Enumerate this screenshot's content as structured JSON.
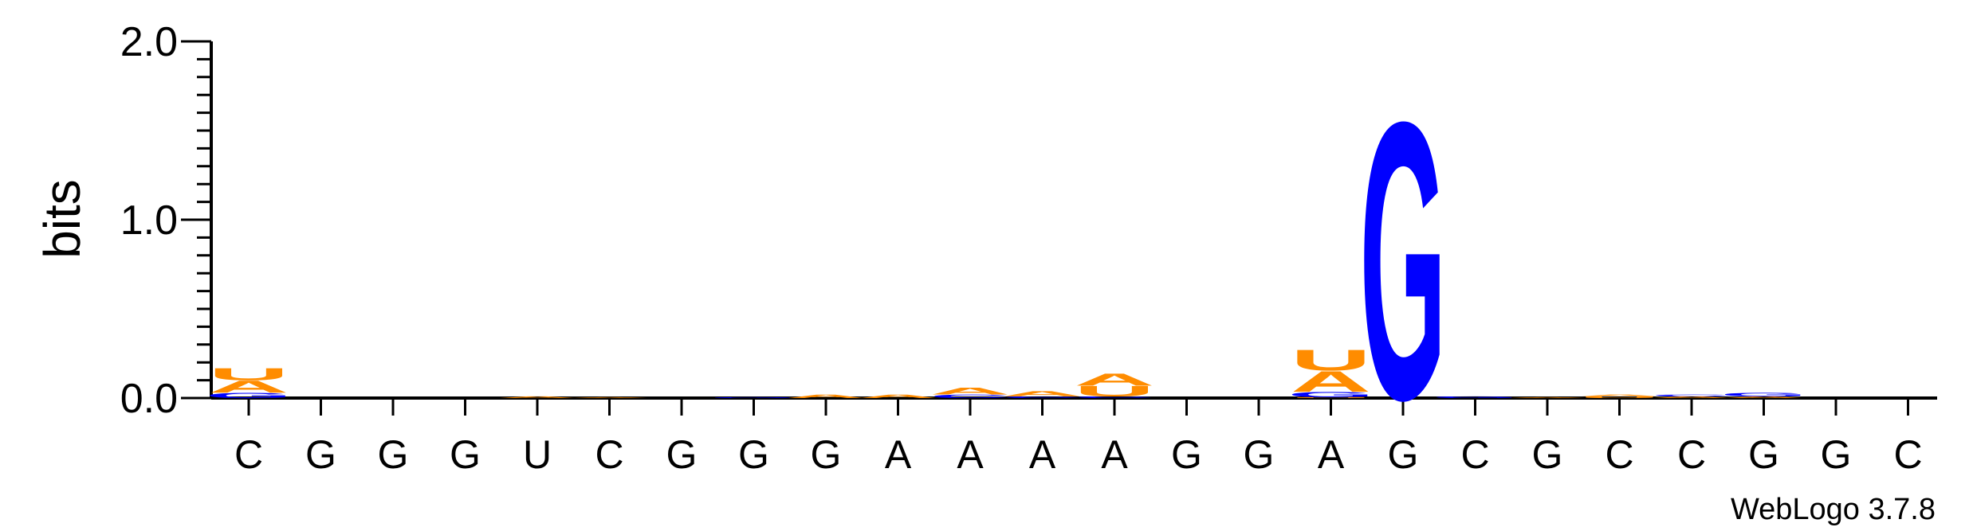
{
  "chart_data": {
    "type": "sequence-logo",
    "ylabel": "bits",
    "ylim": [
      0,
      2.0
    ],
    "yticks": [
      {
        "value": 0.0,
        "label": "0.0"
      },
      {
        "value": 1.0,
        "label": "1.0"
      },
      {
        "value": 2.0,
        "label": "2.0"
      }
    ],
    "positions": [
      {
        "label": "C",
        "stack": [
          {
            "letter": "G",
            "bits": 0.03
          },
          {
            "letter": "A",
            "bits": 0.07
          },
          {
            "letter": "U",
            "bits": 0.07
          }
        ]
      },
      {
        "label": "G",
        "stack": []
      },
      {
        "label": "G",
        "stack": []
      },
      {
        "label": "G",
        "stack": []
      },
      {
        "label": "U",
        "stack": [
          {
            "letter": "A",
            "bits": 0.01
          }
        ]
      },
      {
        "label": "C",
        "stack": [
          {
            "letter": "A",
            "bits": 0.005
          }
        ]
      },
      {
        "label": "G",
        "stack": []
      },
      {
        "label": "G",
        "stack": [
          {
            "letter": "G",
            "bits": 0.005
          }
        ]
      },
      {
        "label": "G",
        "stack": [
          {
            "letter": "A",
            "bits": 0.02
          }
        ]
      },
      {
        "label": "A",
        "stack": [
          {
            "letter": "A",
            "bits": 0.02
          }
        ]
      },
      {
        "label": "A",
        "stack": [
          {
            "letter": "C",
            "bits": 0.02
          },
          {
            "letter": "A",
            "bits": 0.04
          }
        ]
      },
      {
        "label": "A",
        "stack": [
          {
            "letter": "C",
            "bits": 0.01
          },
          {
            "letter": "A",
            "bits": 0.03
          }
        ]
      },
      {
        "label": "A",
        "stack": [
          {
            "letter": "C",
            "bits": 0.01
          },
          {
            "letter": "U",
            "bits": 0.06
          },
          {
            "letter": "A",
            "bits": 0.07
          }
        ]
      },
      {
        "label": "G",
        "stack": []
      },
      {
        "label": "G",
        "stack": []
      },
      {
        "label": "A",
        "stack": [
          {
            "letter": "U",
            "bits": 0.005
          },
          {
            "letter": "G",
            "bits": 0.03
          },
          {
            "letter": "A",
            "bits": 0.12
          },
          {
            "letter": "U",
            "bits": 0.12
          }
        ]
      },
      {
        "label": "G",
        "stack": [
          {
            "letter": "G",
            "bits": 1.6
          }
        ]
      },
      {
        "label": "C",
        "stack": [
          {
            "letter": "G",
            "bits": 0.01
          }
        ]
      },
      {
        "label": "G",
        "stack": [
          {
            "letter": "A",
            "bits": 0.005
          }
        ]
      },
      {
        "label": "C",
        "stack": [
          {
            "letter": "U",
            "bits": 0.01
          },
          {
            "letter": "A",
            "bits": 0.01
          }
        ]
      },
      {
        "label": "C",
        "stack": [
          {
            "letter": "A",
            "bits": 0.01
          },
          {
            "letter": "C",
            "bits": 0.01
          }
        ]
      },
      {
        "label": "G",
        "stack": [
          {
            "letter": "A",
            "bits": 0.01
          },
          {
            "letter": "G",
            "bits": 0.02
          }
        ]
      },
      {
        "label": "G",
        "stack": []
      },
      {
        "label": "C",
        "stack": []
      }
    ],
    "colors": {
      "A": "#ff8c00",
      "U": "#ff8c00",
      "G": "#0000ff",
      "C": "#0000ff"
    }
  },
  "credit": "WebLogo 3.7.8"
}
